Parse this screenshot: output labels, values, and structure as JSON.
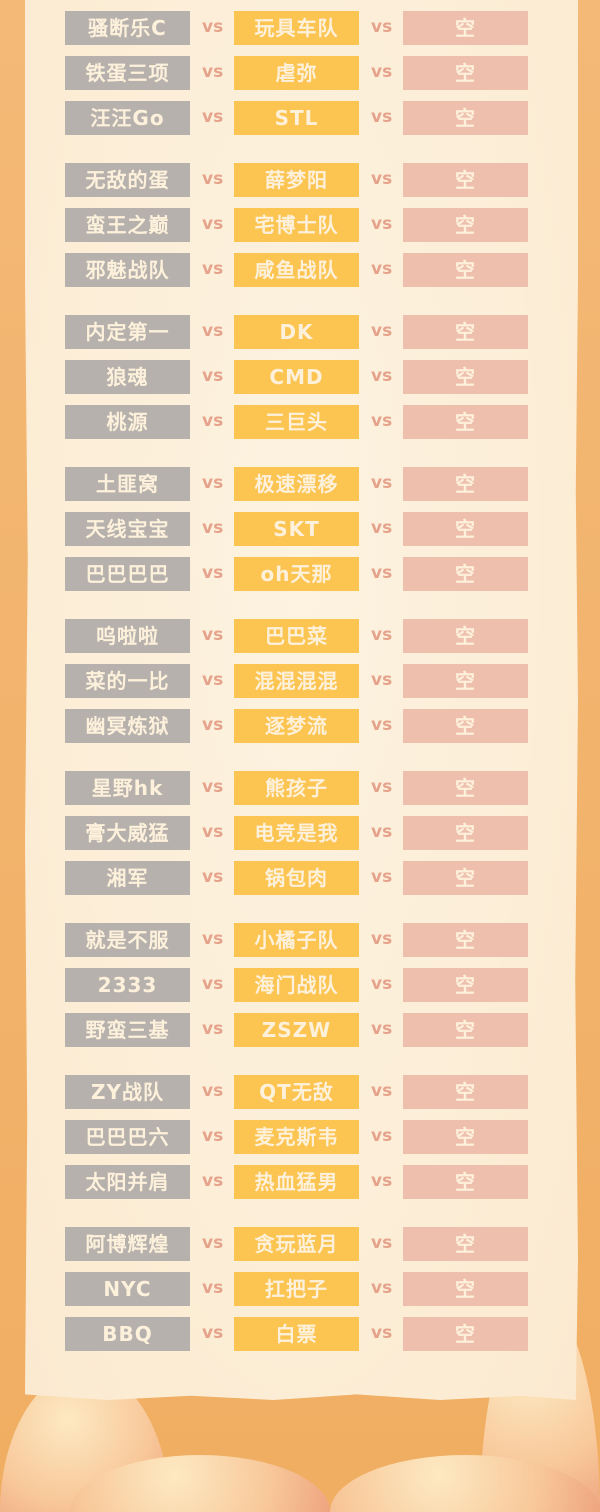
{
  "colors": {
    "team_a": "#b6b1ac",
    "team_b": "#fcc451",
    "team_c": "#efbfae",
    "vs": "#e6a38c",
    "background": "#f0ae62",
    "paper": "#fcefd9"
  },
  "vs_label": "vs",
  "groups": [
    [
      [
        "骚断乐C",
        "玩具车队",
        "空"
      ],
      [
        "铁蛋三项",
        "虐弥",
        "空"
      ],
      [
        "汪汪Go",
        "STL",
        "空"
      ]
    ],
    [
      [
        "无敌的蛋",
        "薛梦阳",
        "空"
      ],
      [
        "蛮王之巅",
        "宅博士队",
        "空"
      ],
      [
        "邪魅战队",
        "咸鱼战队",
        "空"
      ]
    ],
    [
      [
        "内定第一",
        "DK",
        "空"
      ],
      [
        "狼魂",
        "CMD",
        "空"
      ],
      [
        "桃源",
        "三巨头",
        "空"
      ]
    ],
    [
      [
        "土匪窝",
        "极速漂移",
        "空"
      ],
      [
        "天线宝宝",
        "SKT",
        "空"
      ],
      [
        "巴巴巴巴",
        "oh天那",
        "空"
      ]
    ],
    [
      [
        "呜啦啦",
        "巴巴菜",
        "空"
      ],
      [
        "菜的一比",
        "混混混混",
        "空"
      ],
      [
        "幽冥炼狱",
        "逐梦流",
        "空"
      ]
    ],
    [
      [
        "星野hk",
        "熊孩子",
        "空"
      ],
      [
        "膏大威猛",
        "电竞是我",
        "空"
      ],
      [
        "湘军",
        "锅包肉",
        "空"
      ]
    ],
    [
      [
        "就是不服",
        "小橘子队",
        "空"
      ],
      [
        "2333",
        "海门战队",
        "空"
      ],
      [
        "野蛮三基",
        "ZSZW",
        "空"
      ]
    ],
    [
      [
        "ZY战队",
        "QT无敌",
        "空"
      ],
      [
        "巴巴巴六",
        "麦克斯韦",
        "空"
      ],
      [
        "太阳并肩",
        "热血猛男",
        "空"
      ]
    ],
    [
      [
        "阿博辉煌",
        "贪玩蓝月",
        "空"
      ],
      [
        "NYC",
        "扛把子",
        "空"
      ],
      [
        "BBQ",
        "白票",
        "空"
      ]
    ]
  ]
}
